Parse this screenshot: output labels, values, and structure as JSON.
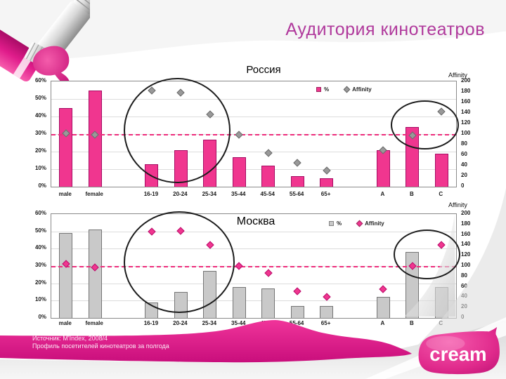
{
  "slide": {
    "title": "Аудитория кинотеатров",
    "source_line1": "Источник: M'Index, 2008/4",
    "source_line2": "Профиль посетителей кинотеатров за полгода",
    "logo_text": "cream"
  },
  "colors": {
    "title_text": "#b0399c",
    "bar_pink": "#f0368f",
    "bar_pink_border": "#a50b63",
    "bar_gray": "#c9c9c9",
    "bar_gray_border": "#757575",
    "diamond_gray": "#999999",
    "diamond_pink": "#f0368f",
    "reference_line": "#ee2d7c",
    "gridline": "#dcdcdc",
    "bottom_wave": "#e01c8b",
    "logo_pink": "#e02a8c"
  },
  "chart_data": [
    {
      "type": "bar",
      "title": "Россия",
      "right_axis_label": "Affinity",
      "categories": [
        "male",
        "female",
        "16-19",
        "20-24",
        "25-34",
        "35-44",
        "45-54",
        "55-64",
        "65+",
        "A",
        "B",
        "C"
      ],
      "series": [
        {
          "name": "%",
          "type": "bar",
          "axis": "left",
          "color": "#f0368f",
          "border": "#a50b63",
          "values": [
            45,
            55,
            13,
            21,
            27,
            17,
            12,
            6,
            5,
            21,
            34,
            19
          ]
        },
        {
          "name": "Affinity",
          "type": "scatter",
          "axis": "right",
          "color": "#999999",
          "border": "#6b6b6b",
          "values": [
            102,
            99,
            183,
            179,
            137,
            99,
            64,
            45,
            31,
            70,
            98,
            143
          ]
        }
      ],
      "left_axis": {
        "min": 0,
        "max": 60,
        "step": 10,
        "suffix": "%"
      },
      "right_axis": {
        "min": 0,
        "max": 200,
        "step": 20
      },
      "reference_line": {
        "axis": "right",
        "value": 100
      },
      "legend": [
        {
          "label": "%",
          "marker": "square",
          "color": "#f0368f"
        },
        {
          "label": "Affinity",
          "marker": "diamond",
          "color": "#999999"
        }
      ],
      "grid": true,
      "legend_position": "top-right-inside"
    },
    {
      "type": "bar",
      "title": "Москва",
      "right_axis_label": "Affinity",
      "categories": [
        "male",
        "female",
        "16-19",
        "20-24",
        "25-34",
        "35-44",
        "45-54",
        "55-64",
        "65+",
        "A",
        "B",
        "C"
      ],
      "series": [
        {
          "name": "%",
          "type": "bar",
          "axis": "left",
          "color": "#c9c9c9",
          "border": "#757575",
          "values": [
            49,
            51,
            9,
            15,
            27,
            18,
            17,
            7,
            7,
            12,
            38,
            18
          ]
        },
        {
          "name": "Affinity",
          "type": "scatter",
          "axis": "right",
          "color": "#f0368f",
          "border": "#b80e6c",
          "values": [
            104,
            97,
            166,
            168,
            140,
            100,
            86,
            52,
            40,
            56,
            100,
            141
          ]
        }
      ],
      "left_axis": {
        "min": 0,
        "max": 60,
        "step": 10,
        "suffix": "%"
      },
      "right_axis": {
        "min": 0,
        "max": 200,
        "step": 20
      },
      "reference_line": {
        "axis": "right",
        "value": 100
      },
      "legend": [
        {
          "label": "%",
          "marker": "square",
          "color": "#c9c9c9"
        },
        {
          "label": "Affinity",
          "marker": "diamond",
          "color": "#f0368f"
        }
      ],
      "grid": true,
      "legend_position": "top-right-inside"
    }
  ]
}
